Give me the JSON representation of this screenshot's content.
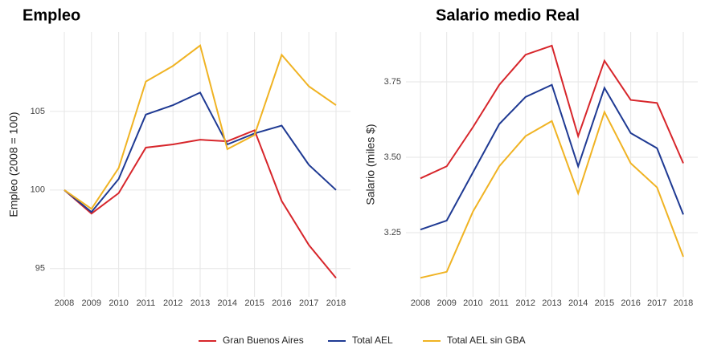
{
  "chart_data": [
    {
      "type": "line",
      "title": "Empleo",
      "y_label": "Empleo (2008 = 100)",
      "categories": [
        "2008",
        "2009",
        "2010",
        "2011",
        "2012",
        "2013",
        "2014",
        "2015",
        "2016",
        "2017",
        "2018"
      ],
      "series": [
        {
          "name": "Gran Buenos Aires",
          "color": "#d7262b",
          "values": [
            100,
            98.5,
            99.8,
            102.7,
            102.9,
            103.2,
            103.1,
            103.8,
            99.3,
            96.5,
            94.4
          ]
        },
        {
          "name": "Total AEL",
          "color": "#1f3a93",
          "values": [
            100,
            98.6,
            100.7,
            104.8,
            105.4,
            106.2,
            102.9,
            103.6,
            104.1,
            101.6,
            100
          ]
        },
        {
          "name": "Total AEL sin GBA",
          "color": "#f0b323",
          "values": [
            100,
            98.8,
            101.4,
            106.9,
            107.9,
            109.2,
            102.6,
            103.5,
            108.6,
            106.6,
            105.4
          ]
        }
      ],
      "ylim": [
        93.2,
        110.05
      ],
      "yticks": [
        95,
        100,
        105
      ],
      "grid": true
    },
    {
      "type": "line",
      "title": "Salario medio Real",
      "y_label": "Salario (miles $)",
      "categories": [
        "2008",
        "2009",
        "2010",
        "2011",
        "2012",
        "2013",
        "2014",
        "2015",
        "2016",
        "2017",
        "2018"
      ],
      "series": [
        {
          "name": "Gran Buenos Aires",
          "color": "#d7262b",
          "values": [
            3.43,
            3.47,
            3.6,
            3.74,
            3.84,
            3.87,
            3.57,
            3.82,
            3.69,
            3.68,
            3.48
          ]
        },
        {
          "name": "Total AEL",
          "color": "#1f3a93",
          "values": [
            3.26,
            3.29,
            3.45,
            3.61,
            3.7,
            3.74,
            3.47,
            3.73,
            3.58,
            3.53,
            3.31
          ]
        },
        {
          "name": "Total AEL sin GBA",
          "color": "#f0b323",
          "values": [
            3.1,
            3.12,
            3.32,
            3.47,
            3.57,
            3.62,
            3.38,
            3.65,
            3.48,
            3.4,
            3.17
          ]
        }
      ],
      "ylim": [
        3.037,
        3.915
      ],
      "yticks": [
        3.25,
        {
          "value": 3.5,
          "label": "3.50"
        },
        3.75
      ],
      "grid": true
    }
  ]
}
